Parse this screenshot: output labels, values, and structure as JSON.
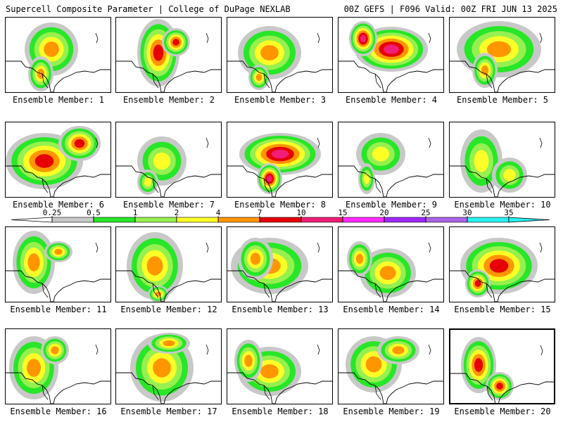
{
  "header": {
    "left": "Supercell Composite Parameter | College of DuPage NEXLAB",
    "right": "00Z GEFS | F096 Valid: 00Z FRI JUN 13 2025"
  },
  "caption_prefix": "Ensemble Member: ",
  "members": [
    {
      "number": "1",
      "peak": "4"
    },
    {
      "number": "2",
      "peak": "7"
    },
    {
      "number": "3",
      "peak": "4"
    },
    {
      "number": "4",
      "peak": "10"
    },
    {
      "number": "5",
      "peak": "4"
    },
    {
      "number": "6",
      "peak": "7"
    },
    {
      "number": "7",
      "peak": "2"
    },
    {
      "number": "8",
      "peak": "10"
    },
    {
      "number": "9",
      "peak": "2"
    },
    {
      "number": "10",
      "peak": "2"
    },
    {
      "number": "11",
      "peak": "4"
    },
    {
      "number": "12",
      "peak": "4"
    },
    {
      "number": "13",
      "peak": "4"
    },
    {
      "number": "14",
      "peak": "4"
    },
    {
      "number": "15",
      "peak": "7"
    },
    {
      "number": "16",
      "peak": "4"
    },
    {
      "number": "17",
      "peak": "4"
    },
    {
      "number": "18",
      "peak": "4"
    },
    {
      "number": "19",
      "peak": "4"
    },
    {
      "number": "20",
      "peak": "7"
    }
  ],
  "legend": {
    "thresholds": [
      "0.25",
      "0.5",
      "1",
      "2",
      "4",
      "7",
      "10",
      "15",
      "20",
      "25",
      "30",
      "35"
    ],
    "colors": [
      "#ffffff",
      "#c8c8c8",
      "#28e628",
      "#96f050",
      "#ffff28",
      "#ff9600",
      "#e60000",
      "#f01e78",
      "#ff28ff",
      "#a028ff",
      "#aa64e6",
      "#28f0f0"
    ]
  }
}
